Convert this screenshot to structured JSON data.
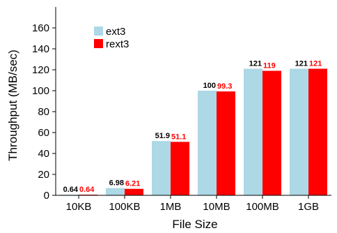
{
  "chart_data": {
    "type": "bar",
    "title": "",
    "xlabel": "File Size",
    "ylabel": "Throughput (MB/sec)",
    "categories": [
      "10KB",
      "100KB",
      "1MB",
      "10MB",
      "100MB",
      "1GB"
    ],
    "ylim": [
      0,
      180
    ],
    "yticks": [
      0,
      20,
      40,
      60,
      80,
      100,
      120,
      140,
      160
    ],
    "grid": false,
    "legend_position": "top-left",
    "series": [
      {
        "name": "ext3",
        "color": "#add8e6",
        "label_color": "#000000",
        "values": [
          0.64,
          6.98,
          51.9,
          100,
          121,
          121
        ],
        "value_labels": [
          "0.64",
          "6.98",
          "51.9",
          "100",
          "121",
          "121"
        ]
      },
      {
        "name": "rext3",
        "color": "#ff0000",
        "label_color": "#ff0000",
        "values": [
          0.64,
          6.21,
          51.1,
          99.3,
          119,
          121
        ],
        "value_labels": [
          "0.64",
          "6.21",
          "51.1",
          "99.3",
          "119",
          "121"
        ]
      }
    ]
  }
}
